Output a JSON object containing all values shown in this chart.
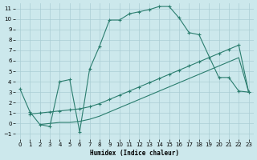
{
  "xlabel": "Humidex (Indice chaleur)",
  "background_color": "#cce8ec",
  "grid_color": "#aacdd4",
  "line_color": "#2a7d6e",
  "xlim": [
    -0.5,
    23.5
  ],
  "ylim": [
    -1.5,
    11.5
  ],
  "xticks": [
    0,
    1,
    2,
    3,
    4,
    5,
    6,
    7,
    8,
    9,
    10,
    11,
    12,
    13,
    14,
    15,
    16,
    17,
    18,
    19,
    20,
    21,
    22,
    23
  ],
  "yticks": [
    -1,
    0,
    1,
    2,
    3,
    4,
    5,
    6,
    7,
    8,
    9,
    10,
    11
  ],
  "curve_main_x": [
    0,
    1,
    2,
    3,
    4,
    5,
    6,
    7,
    8,
    9,
    10,
    11,
    12,
    13,
    14,
    15,
    16,
    17,
    18,
    20,
    21,
    22,
    23
  ],
  "curve_main_y": [
    3.3,
    1.1,
    -0.1,
    -0.3,
    4.0,
    4.2,
    -0.8,
    5.2,
    7.4,
    9.9,
    9.9,
    10.5,
    10.7,
    10.9,
    11.2,
    11.2,
    10.1,
    8.7,
    8.5,
    4.4,
    4.4,
    3.1,
    3.0
  ],
  "curve_diag1_x": [
    1,
    2,
    3,
    4,
    5,
    6,
    7,
    8,
    9,
    10,
    11,
    12,
    13,
    14,
    15,
    16,
    17,
    18,
    19,
    20,
    21,
    22,
    23
  ],
  "curve_diag1_y": [
    0.9,
    1.0,
    1.1,
    1.2,
    1.3,
    1.4,
    1.6,
    1.9,
    2.3,
    2.7,
    3.1,
    3.5,
    3.9,
    4.3,
    4.7,
    5.1,
    5.5,
    5.9,
    6.3,
    6.7,
    7.1,
    7.5,
    3.0
  ],
  "curve_diag2_x": [
    2,
    3,
    4,
    5,
    6,
    7,
    8,
    9,
    10,
    11,
    12,
    13,
    14,
    15,
    16,
    17,
    18,
    19,
    20,
    21,
    22,
    23
  ],
  "curve_diag2_y": [
    -0.1,
    0.0,
    0.1,
    0.1,
    0.2,
    0.4,
    0.7,
    1.1,
    1.5,
    1.9,
    2.3,
    2.7,
    3.1,
    3.5,
    3.9,
    4.3,
    4.7,
    5.1,
    5.5,
    5.9,
    6.3,
    3.0
  ]
}
